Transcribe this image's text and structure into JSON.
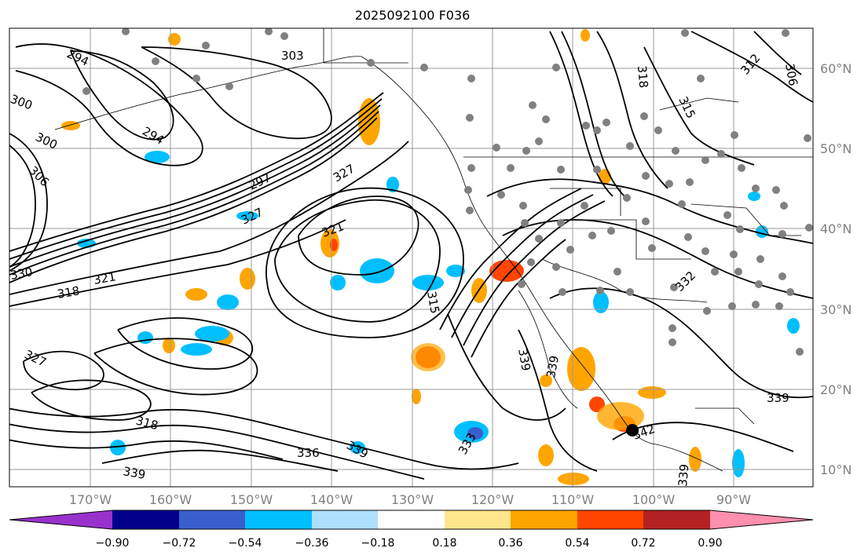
{
  "title": "2025092100 F036",
  "map": {
    "lat_labels": [
      "60°N",
      "50°N",
      "40°N",
      "30°N",
      "20°N",
      "10°N"
    ],
    "lon_labels": [
      "170°W",
      "160°W",
      "150°W",
      "140°W",
      "130°W",
      "120°W",
      "110°W",
      "100°W",
      "90°W"
    ],
    "contour_labels": [
      {
        "text": "294"
      },
      {
        "text": "303"
      },
      {
        "text": "300"
      },
      {
        "text": "300"
      },
      {
        "text": "306"
      },
      {
        "text": "294"
      },
      {
        "text": "297"
      },
      {
        "text": "327"
      },
      {
        "text": "327"
      },
      {
        "text": "321"
      },
      {
        "text": "330"
      },
      {
        "text": "321"
      },
      {
        "text": "318"
      },
      {
        "text": "315"
      },
      {
        "text": "339"
      },
      {
        "text": "339"
      },
      {
        "text": "327"
      },
      {
        "text": "318"
      },
      {
        "text": "336"
      },
      {
        "text": "339"
      },
      {
        "text": "333"
      },
      {
        "text": "339"
      },
      {
        "text": "342"
      },
      {
        "text": "339"
      },
      {
        "text": "318"
      },
      {
        "text": "315"
      },
      {
        "text": "312"
      },
      {
        "text": "306"
      },
      {
        "text": "332"
      },
      {
        "text": "339"
      }
    ],
    "station_marker": "black-dot-marker",
    "colors": {
      "contour": "#000000",
      "grid": "#999999",
      "land_border": "#000000"
    }
  },
  "colorbar": {
    "tick_labels": [
      "−0.90",
      "−0.72",
      "−0.54",
      "−0.36",
      "−0.18",
      "0.18",
      "0.36",
      "0.54",
      "0.72",
      "0.90"
    ],
    "colors": [
      "#9932CC",
      "#00008B",
      "#3A5FCD",
      "#00BFFF",
      "#ADDFFF",
      "#FFFFFF",
      "#FFE68A",
      "#FFA500",
      "#FF4500",
      "#B22222",
      "#FF8FAF"
    ]
  }
}
